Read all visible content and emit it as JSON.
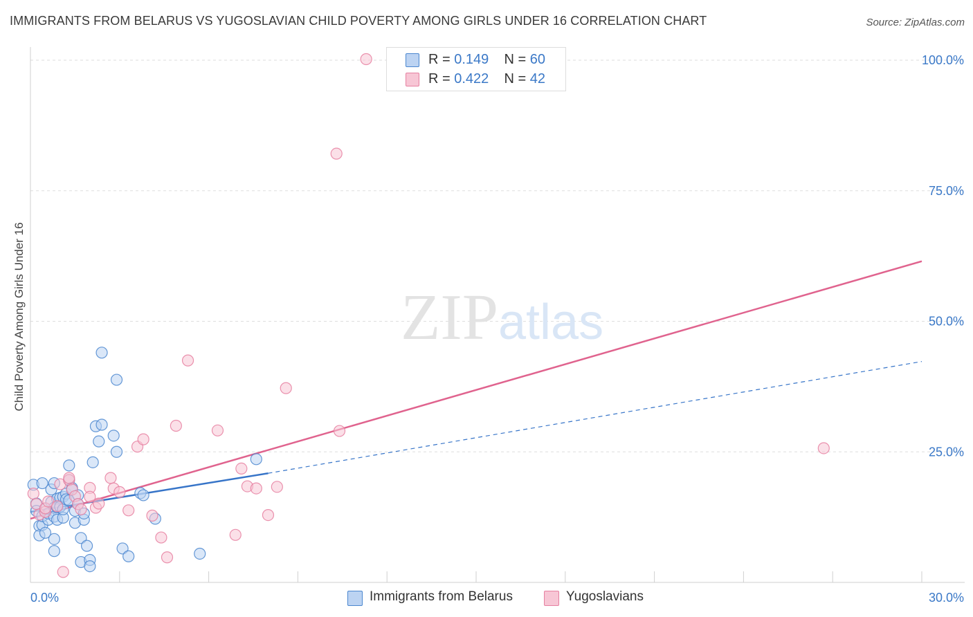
{
  "title": "IMMIGRANTS FROM BELARUS VS YUGOSLAVIAN CHILD POVERTY AMONG GIRLS UNDER 16 CORRELATION CHART",
  "source": "Source: ZipAtlas.com",
  "watermark": {
    "zip": "ZIP",
    "atlas": "atlas"
  },
  "colors": {
    "blue_fill": "#bcd3f2",
    "blue_stroke": "#4a86cf",
    "blue_line": "#3674c8",
    "pink_fill": "#f7c6d5",
    "pink_stroke": "#e67fa0",
    "pink_line": "#e0638e",
    "tick_text": "#3a78c7",
    "grid": "#dddddd"
  },
  "legend_top": {
    "rows": [
      {
        "r_label": "R =",
        "r_value": "0.149",
        "n_label": "N =",
        "n_value": "60",
        "color": "#bcd3f2",
        "stroke": "#4a86cf"
      },
      {
        "r_label": "R =",
        "r_value": "0.422",
        "n_label": "N =",
        "n_value": "42",
        "color": "#f7c6d5",
        "stroke": "#e67fa0"
      }
    ]
  },
  "legend_bottom": [
    {
      "label": "Immigrants from Belarus",
      "color": "#bcd3f2",
      "stroke": "#4a86cf"
    },
    {
      "label": "Yugoslavians",
      "color": "#f7c6d5",
      "stroke": "#e67fa0"
    }
  ],
  "chart_data": {
    "type": "scatter",
    "title": "IMMIGRANTS FROM BELARUS VS YUGOSLAVIAN CHILD POVERTY AMONG GIRLS UNDER 16 CORRELATION CHART",
    "xlabel": "",
    "ylabel": "Child Poverty Among Girls Under 16",
    "xlim": [
      0,
      30
    ],
    "ylim": [
      0,
      100
    ],
    "x_tick_labels": {
      "min": "0.0%",
      "max": "30.0%"
    },
    "y_ticks": [
      {
        "value": 25,
        "label": "25.0%"
      },
      {
        "value": 50,
        "label": "50.0%"
      },
      {
        "value": 75,
        "label": "75.0%"
      },
      {
        "value": 100,
        "label": "100.0%"
      }
    ],
    "series": [
      {
        "name": "Immigrants from Belarus",
        "R": 0.149,
        "N": 60,
        "trend": {
          "x0": 0,
          "y0": 13.5,
          "x1": 8,
          "y1": 20.9,
          "dashed_to_x": 30,
          "dashed_to_y": 42.3
        },
        "points": [
          [
            0.1,
            18.7
          ],
          [
            0.2,
            15.1
          ],
          [
            0.2,
            13.7
          ],
          [
            0.3,
            10.8
          ],
          [
            0.3,
            9.0
          ],
          [
            0.4,
            19.0
          ],
          [
            0.4,
            11.0
          ],
          [
            0.4,
            12.7
          ],
          [
            0.5,
            14.1
          ],
          [
            0.5,
            9.5
          ],
          [
            0.6,
            12.0
          ],
          [
            0.6,
            13.2
          ],
          [
            0.7,
            17.8
          ],
          [
            0.7,
            15.4
          ],
          [
            0.8,
            14.3
          ],
          [
            0.8,
            12.6
          ],
          [
            0.8,
            19.0
          ],
          [
            0.9,
            16.0
          ],
          [
            0.9,
            14.4
          ],
          [
            0.9,
            12.0
          ],
          [
            0.8,
            8.3
          ],
          [
            0.8,
            6.0
          ],
          [
            1.0,
            16.2
          ],
          [
            1.0,
            14.5
          ],
          [
            1.1,
            12.4
          ],
          [
            1.1,
            14.0
          ],
          [
            1.1,
            16.4
          ],
          [
            1.2,
            17.0
          ],
          [
            1.2,
            15.9
          ],
          [
            1.3,
            22.4
          ],
          [
            1.3,
            19.6
          ],
          [
            1.3,
            15.7
          ],
          [
            1.4,
            18.1
          ],
          [
            1.4,
            17.8
          ],
          [
            1.5,
            13.7
          ],
          [
            1.5,
            11.4
          ],
          [
            1.6,
            16.7
          ],
          [
            1.6,
            15.0
          ],
          [
            1.7,
            8.5
          ],
          [
            1.7,
            3.9
          ],
          [
            1.8,
            12.0
          ],
          [
            1.8,
            13.2
          ],
          [
            1.9,
            7.0
          ],
          [
            2.0,
            4.3
          ],
          [
            2.0,
            3.1
          ],
          [
            2.1,
            23.0
          ],
          [
            2.2,
            29.9
          ],
          [
            2.3,
            27.0
          ],
          [
            2.4,
            30.2
          ],
          [
            2.4,
            44.0
          ],
          [
            2.8,
            28.1
          ],
          [
            2.9,
            25.0
          ],
          [
            2.9,
            38.8
          ],
          [
            3.1,
            6.5
          ],
          [
            3.3,
            5.0
          ],
          [
            3.7,
            17.1
          ],
          [
            3.8,
            16.7
          ],
          [
            4.2,
            12.2
          ],
          [
            5.7,
            5.5
          ],
          [
            7.6,
            23.6
          ]
        ]
      },
      {
        "name": "Yugoslavians",
        "R": 0.422,
        "N": 42,
        "trend": {
          "x0": 0,
          "y0": 12.2,
          "x1": 30,
          "y1": 61.5
        },
        "points": [
          [
            0.1,
            17.0
          ],
          [
            0.2,
            15.0
          ],
          [
            0.3,
            13.0
          ],
          [
            0.5,
            13.5
          ],
          [
            0.5,
            14.2
          ],
          [
            0.6,
            15.5
          ],
          [
            0.9,
            14.6
          ],
          [
            1.0,
            18.8
          ],
          [
            1.3,
            19.6
          ],
          [
            1.3,
            20.0
          ],
          [
            1.4,
            17.8
          ],
          [
            1.5,
            16.5
          ],
          [
            1.6,
            15.0
          ],
          [
            1.7,
            14.0
          ],
          [
            2.0,
            18.1
          ],
          [
            2.0,
            16.4
          ],
          [
            2.2,
            14.3
          ],
          [
            2.3,
            15.1
          ],
          [
            2.7,
            20.0
          ],
          [
            2.8,
            18.0
          ],
          [
            3.0,
            17.3
          ],
          [
            3.3,
            13.8
          ],
          [
            3.6,
            26.0
          ],
          [
            3.8,
            27.4
          ],
          [
            4.1,
            12.8
          ],
          [
            4.4,
            8.6
          ],
          [
            4.6,
            4.8
          ],
          [
            4.9,
            30.0
          ],
          [
            5.3,
            42.5
          ],
          [
            6.3,
            29.1
          ],
          [
            6.9,
            9.1
          ],
          [
            7.1,
            21.8
          ],
          [
            7.3,
            18.4
          ],
          [
            7.6,
            18.0
          ],
          [
            8.0,
            12.9
          ],
          [
            8.3,
            18.3
          ],
          [
            8.6,
            37.2
          ],
          [
            10.3,
            82.1
          ],
          [
            10.4,
            29.0
          ],
          [
            11.3,
            100.2
          ],
          [
            1.1,
            2.0
          ],
          [
            26.7,
            25.7
          ]
        ]
      }
    ]
  }
}
